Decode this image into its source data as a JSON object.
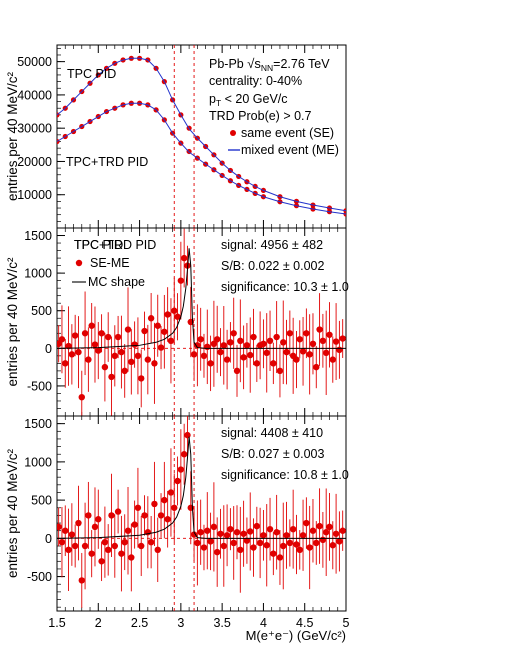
{
  "chart_data": [
    {
      "type": "scatter",
      "ylabel": "entries per 40 MeV/c²",
      "ylim": [
        0,
        55000
      ],
      "xlim": [
        1.5,
        5.0
      ],
      "yticks": [
        10000,
        20000,
        30000,
        40000,
        50000
      ],
      "labels": {
        "tpc": "TPC PID",
        "trd": "TPC+TRD PID",
        "info": [
          "Pb-Pb √s_NN=2.76 TeV",
          "centrality: 0-40%",
          "p_T < 20 GeV/c",
          "TRD Prob(e) > 0.7"
        ]
      },
      "legend": [
        {
          "label": "same event (SE)",
          "marker": "dot",
          "color": "#e00000"
        },
        {
          "label": "mixed event (ME)",
          "marker": "line",
          "color": "#2233cc"
        }
      ],
      "series": [
        {
          "name": "same event (SE)",
          "marker": "dot",
          "color": "#e00000",
          "x": [
            1.5,
            1.6,
            1.7,
            1.8,
            1.9,
            2.0,
            2.1,
            2.2,
            2.3,
            2.4,
            2.5,
            2.6,
            2.7,
            2.8,
            2.9,
            3.0,
            3.1,
            3.2,
            3.3,
            3.4,
            3.5,
            3.6,
            3.7,
            3.8,
            3.9,
            4.0,
            4.2,
            4.4,
            4.6,
            4.8,
            5.0
          ],
          "y": [
            34000,
            36000,
            38500,
            41000,
            43500,
            46000,
            48000,
            49500,
            50500,
            51000,
            51000,
            50500,
            48000,
            44000,
            38500,
            34000,
            30000,
            27000,
            24500,
            22000,
            19500,
            17300,
            15500,
            13900,
            12500,
            11300,
            9400,
            8000,
            6900,
            6000,
            5200
          ]
        },
        {
          "name": "same event (SE)",
          "marker": "dot",
          "color": "#e00000",
          "x": [
            1.5,
            1.6,
            1.7,
            1.8,
            1.9,
            2.0,
            2.1,
            2.2,
            2.3,
            2.4,
            2.5,
            2.6,
            2.7,
            2.8,
            2.9,
            3.0,
            3.1,
            3.2,
            3.3,
            3.4,
            3.5,
            3.6,
            3.7,
            3.8,
            3.9,
            4.0,
            4.2,
            4.4,
            4.6,
            4.8,
            5.0
          ],
          "y": [
            26000,
            27500,
            29000,
            30500,
            32000,
            33500,
            35000,
            36000,
            37000,
            37500,
            37500,
            37000,
            35500,
            32500,
            28500,
            25500,
            23000,
            21000,
            19200,
            17500,
            15800,
            14200,
            12800,
            11600,
            10400,
            9400,
            7900,
            6700,
            5700,
            4900,
            4200
          ]
        },
        {
          "name": "mixed event (ME)",
          "marker": "line",
          "color": "#2233cc",
          "x": [
            1.5,
            1.6,
            1.7,
            1.8,
            1.9,
            2.0,
            2.1,
            2.2,
            2.3,
            2.4,
            2.5,
            2.6,
            2.7,
            2.8,
            2.9,
            3.0,
            3.1,
            3.2,
            3.3,
            3.4,
            3.5,
            3.6,
            3.7,
            3.8,
            3.9,
            4.0,
            4.2,
            4.4,
            4.6,
            4.8,
            5.0
          ],
          "y": [
            34000,
            36000,
            38500,
            41000,
            43500,
            46000,
            48000,
            49500,
            50500,
            51000,
            51000,
            50500,
            48000,
            44000,
            38500,
            34000,
            29800,
            27000,
            24500,
            22000,
            19500,
            17300,
            15500,
            13900,
            12500,
            11300,
            9400,
            8000,
            6900,
            6000,
            5200
          ]
        },
        {
          "name": "mixed event (ME)",
          "marker": "line",
          "color": "#2233cc",
          "x": [
            1.5,
            1.6,
            1.7,
            1.8,
            1.9,
            2.0,
            2.1,
            2.2,
            2.3,
            2.4,
            2.5,
            2.6,
            2.7,
            2.8,
            2.9,
            3.0,
            3.1,
            3.2,
            3.3,
            3.4,
            3.5,
            3.6,
            3.7,
            3.8,
            3.9,
            4.0,
            4.2,
            4.4,
            4.6,
            4.8,
            5.0
          ],
          "y": [
            26000,
            27500,
            29000,
            30500,
            32000,
            33500,
            35000,
            36000,
            37000,
            37500,
            37500,
            37000,
            35500,
            32500,
            28500,
            25500,
            22800,
            21000,
            19200,
            17500,
            15800,
            14200,
            12800,
            11600,
            10400,
            9400,
            7900,
            6700,
            5700,
            4900,
            4200
          ]
        }
      ]
    },
    {
      "type": "scatter",
      "ylabel": "entries per 40 MeV/c²",
      "ylim": [
        -900,
        1600
      ],
      "xlim": [
        1.5,
        5.0
      ],
      "yticks": [
        -500,
        0,
        500,
        1000,
        1500
      ],
      "labels": {
        "title": "TPC PID",
        "stats": [
          "signal: 4956 ± 482",
          "S/B: 0.022 ± 0.002",
          "significance: 10.3 ± 1.0"
        ]
      },
      "legend": [
        {
          "label": "SE-ME",
          "marker": "dot",
          "color": "#e00000"
        },
        {
          "label": "MC shape",
          "marker": "line",
          "color": "#000000"
        }
      ],
      "series": [
        {
          "name": "SE-ME",
          "marker": "dot",
          "color": "#e00000",
          "x": [
            1.52,
            1.56,
            1.6,
            1.64,
            1.68,
            1.72,
            1.76,
            1.8,
            1.84,
            1.88,
            1.92,
            1.96,
            2.0,
            2.04,
            2.08,
            2.12,
            2.16,
            2.2,
            2.24,
            2.28,
            2.32,
            2.36,
            2.4,
            2.44,
            2.48,
            2.52,
            2.56,
            2.6,
            2.64,
            2.68,
            2.72,
            2.76,
            2.8,
            2.84,
            2.88,
            2.92,
            2.96,
            3.0,
            3.04,
            3.08,
            3.12,
            3.16,
            3.2,
            3.24,
            3.28,
            3.32,
            3.36,
            3.4,
            3.44,
            3.48,
            3.52,
            3.56,
            3.6,
            3.64,
            3.68,
            3.72,
            3.76,
            3.8,
            3.84,
            3.88,
            3.92,
            3.96,
            4.0,
            4.04,
            4.08,
            4.12,
            4.16,
            4.2,
            4.24,
            4.28,
            4.32,
            4.36,
            4.4,
            4.44,
            4.48,
            4.52,
            4.56,
            4.6,
            4.64,
            4.68,
            4.72,
            4.76,
            4.8,
            4.84,
            4.88,
            4.92,
            4.96
          ],
          "y": [
            60,
            120,
            -200,
            30,
            -80,
            170,
            -50,
            -650,
            200,
            -150,
            300,
            50,
            -30,
            200,
            -250,
            150,
            -380,
            -100,
            150,
            -50,
            -300,
            250,
            -180,
            50,
            -100,
            -400,
            230,
            -150,
            400,
            -200,
            300,
            10,
            220,
            450,
            100,
            500,
            420,
            900,
            1200,
            1100,
            350,
            -80,
            40,
            120,
            -100,
            20,
            -200,
            60,
            120,
            -50,
            40,
            -150,
            80,
            200,
            -300,
            100,
            -120,
            40,
            -90,
            150,
            -200,
            40,
            60,
            -60,
            100,
            -200,
            150,
            -300,
            80,
            -50,
            200,
            -100,
            -150,
            120,
            -40,
            200,
            -80,
            60,
            -250,
            250,
            100,
            -60,
            180,
            -150,
            90,
            -20,
            130
          ]
        },
        {
          "name": "MC shape",
          "marker": "line",
          "color": "#000000",
          "x": [
            1.5,
            2.0,
            2.5,
            2.7,
            2.8,
            2.9,
            2.95,
            3.0,
            3.03,
            3.06,
            3.08,
            3.1,
            3.12,
            3.14,
            3.16,
            3.2,
            3.3,
            4.0,
            5.0
          ],
          "y": [
            0,
            10,
            40,
            80,
            120,
            200,
            280,
            420,
            560,
            800,
            1050,
            1330,
            1100,
            400,
            80,
            10,
            0,
            0,
            0
          ]
        }
      ]
    },
    {
      "type": "scatter",
      "ylabel": "entries per 40 MeV/c²",
      "ylim": [
        -950,
        1600
      ],
      "xlim": [
        1.5,
        5.0
      ],
      "yticks": [
        -500,
        0,
        500,
        1000,
        1500
      ],
      "xticks": [
        1.5,
        2,
        2.5,
        3,
        3.5,
        4,
        4.5,
        5
      ],
      "xlabel": "M(e⁺e⁻) (GeV/c²)",
      "labels": {
        "title": "TPC+TRD PID",
        "stats": [
          "signal: 4408 ± 410",
          "S/B: 0.027 ± 0.003",
          "significance: 10.8 ± 1.0"
        ]
      },
      "series": [
        {
          "name": "SE-ME",
          "marker": "dot",
          "color": "#e00000",
          "x": [
            1.52,
            1.56,
            1.6,
            1.64,
            1.68,
            1.72,
            1.76,
            1.8,
            1.84,
            1.88,
            1.92,
            1.96,
            2.0,
            2.04,
            2.08,
            2.12,
            2.16,
            2.2,
            2.24,
            2.28,
            2.32,
            2.36,
            2.4,
            2.44,
            2.48,
            2.52,
            2.56,
            2.6,
            2.64,
            2.68,
            2.72,
            2.76,
            2.8,
            2.84,
            2.88,
            2.92,
            2.96,
            3.0,
            3.04,
            3.08,
            3.12,
            3.16,
            3.2,
            3.24,
            3.28,
            3.32,
            3.36,
            3.4,
            3.44,
            3.48,
            3.52,
            3.56,
            3.6,
            3.64,
            3.68,
            3.72,
            3.76,
            3.8,
            3.84,
            3.88,
            3.92,
            3.96,
            4.0,
            4.04,
            4.08,
            4.12,
            4.16,
            4.2,
            4.24,
            4.28,
            4.32,
            4.36,
            4.4,
            4.44,
            4.48,
            4.52,
            4.56,
            4.6,
            4.64,
            4.68,
            4.72,
            4.76,
            4.8,
            4.84,
            4.88,
            4.92,
            4.96
          ],
          "y": [
            150,
            -50,
            100,
            -150,
            50,
            -100,
            200,
            -550,
            -100,
            300,
            -200,
            150,
            250,
            -300,
            -50,
            -150,
            300,
            -100,
            350,
            -200,
            -50,
            100,
            -250,
            180,
            400,
            -100,
            300,
            80,
            -50,
            450,
            -150,
            300,
            500,
            250,
            600,
            400,
            750,
            900,
            1100,
            1350,
            400,
            50,
            -60,
            80,
            -120,
            100,
            -40,
            150,
            -180,
            60,
            -100,
            40,
            120,
            -60,
            80,
            -150,
            60,
            -30,
            90,
            -120,
            160,
            -60,
            40,
            -90,
            120,
            -200,
            80,
            -250,
            -100,
            40,
            -60,
            120,
            -80,
            -150,
            40,
            200,
            -120,
            100,
            -60,
            160,
            -20,
            80,
            150,
            -90,
            60,
            -40,
            100
          ]
        },
        {
          "name": "MC shape",
          "marker": "line",
          "color": "#000000",
          "x": [
            1.5,
            2.0,
            2.5,
            2.7,
            2.8,
            2.9,
            2.95,
            3.0,
            3.03,
            3.06,
            3.08,
            3.1,
            3.12,
            3.14,
            3.16,
            3.2,
            3.3,
            4.0,
            5.0
          ],
          "y": [
            0,
            10,
            40,
            80,
            120,
            200,
            280,
            420,
            560,
            800,
            1050,
            1330,
            1100,
            400,
            80,
            10,
            0,
            0,
            0
          ]
        }
      ]
    }
  ],
  "vlines": [
    2.92,
    3.16
  ]
}
